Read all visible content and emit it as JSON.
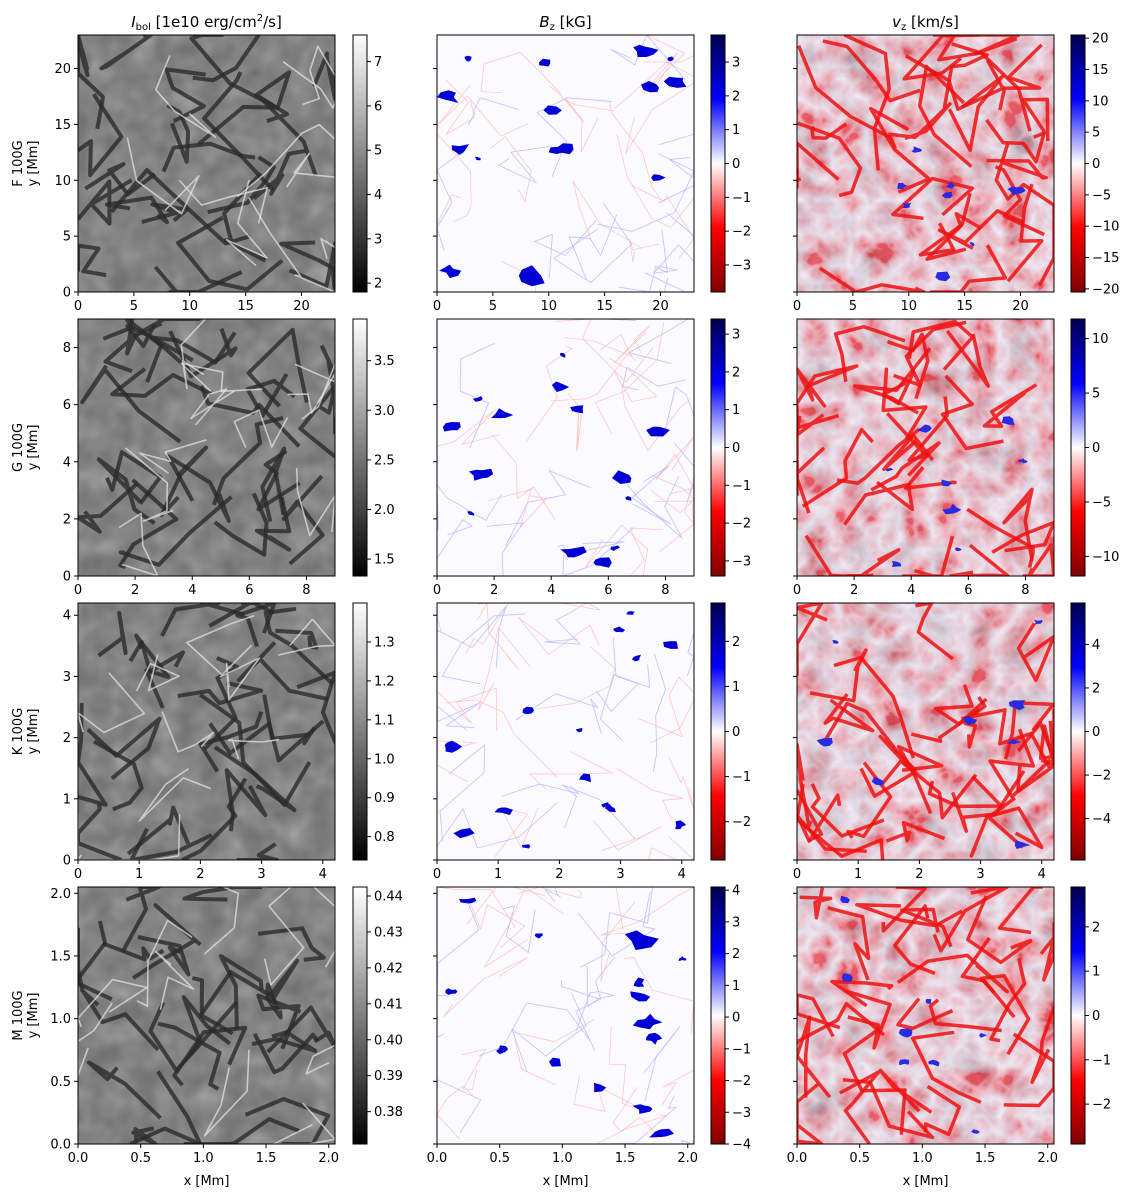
{
  "chart_data": {
    "type": "heatmap",
    "column_titles": [
      {
        "main": "I",
        "sub": "bol",
        "rest": " [1e10 erg/cm",
        "sup": "2",
        "tail": "/s]"
      },
      {
        "main": "B",
        "sub": "z",
        "rest": " [kG]",
        "sup": "",
        "tail": ""
      },
      {
        "main": "v",
        "sub": "z",
        "rest": " [km/s]",
        "sup": "",
        "tail": ""
      }
    ],
    "xlabel": "x [Mm]",
    "ylabel": "y [Mm]",
    "colormaps": [
      "gray",
      "seismic_r",
      "seismic_r"
    ],
    "colors": {
      "blue": "#0000cc",
      "red": "#e00000",
      "white": "#ffffff",
      "darkred": "#800000",
      "darkblue": "#00006a"
    },
    "rows": [
      {
        "star": "F 100G",
        "xlim": [
          0,
          23
        ],
        "ylim": [
          0,
          23
        ],
        "xticks": [
          "0",
          "5",
          "10",
          "15",
          "20"
        ],
        "xtick_values": [
          0,
          5,
          10,
          15,
          20
        ],
        "yticks": [
          "0",
          "5",
          "10",
          "15",
          "20"
        ],
        "ytick_values": [
          0,
          5,
          10,
          15,
          20
        ],
        "colorbars": [
          {
            "range": [
              1.8,
              7.6
            ],
            "ticks": [
              "2",
              "3",
              "4",
              "5",
              "6",
              "7"
            ],
            "tick_values": [
              2,
              3,
              4,
              5,
              6,
              7
            ]
          },
          {
            "range": [
              -3.8,
              3.8
            ],
            "ticks": [
              "−3",
              "−2",
              "−1",
              "0",
              "1",
              "2",
              "3"
            ],
            "tick_values": [
              -3,
              -2,
              -1,
              0,
              1,
              2,
              3
            ]
          },
          {
            "range": [
              -20.5,
              20.5
            ],
            "ticks": [
              "−20",
              "−15",
              "−10",
              "−5",
              "0",
              "5",
              "10",
              "15",
              "20"
            ],
            "tick_values": [
              -20,
              -15,
              -10,
              -5,
              0,
              5,
              10,
              15,
              20
            ]
          }
        ]
      },
      {
        "star": "G 100G",
        "xlim": [
          0,
          9
        ],
        "ylim": [
          0,
          9
        ],
        "xticks": [
          "0",
          "2",
          "4",
          "6",
          "8"
        ],
        "xtick_values": [
          0,
          2,
          4,
          6,
          8
        ],
        "yticks": [
          "0",
          "2",
          "4",
          "6",
          "8"
        ],
        "ytick_values": [
          0,
          2,
          4,
          6,
          8
        ],
        "colorbars": [
          {
            "range": [
              1.33,
              3.92
            ],
            "ticks": [
              "1.5",
              "2.0",
              "2.5",
              "3.0",
              "3.5"
            ],
            "tick_values": [
              1.5,
              2.0,
              2.5,
              3.0,
              3.5
            ]
          },
          {
            "range": [
              -3.4,
              3.4
            ],
            "ticks": [
              "−3",
              "−2",
              "−1",
              "0",
              "1",
              "2",
              "3"
            ],
            "tick_values": [
              -3,
              -2,
              -1,
              0,
              1,
              2,
              3
            ]
          },
          {
            "range": [
              -11.8,
              11.8
            ],
            "ticks": [
              "−10",
              "−5",
              "0",
              "5",
              "10"
            ],
            "tick_values": [
              -10,
              -5,
              0,
              5,
              10
            ]
          }
        ]
      },
      {
        "star": "K 100G",
        "xlim": [
          0,
          4.2
        ],
        "ylim": [
          0,
          4.2
        ],
        "xticks": [
          "0",
          "1",
          "2",
          "3",
          "4"
        ],
        "xtick_values": [
          0,
          1,
          2,
          3,
          4
        ],
        "yticks": [
          "0",
          "1",
          "2",
          "3",
          "4"
        ],
        "ytick_values": [
          0,
          1,
          2,
          3,
          4
        ],
        "colorbars": [
          {
            "range": [
              0.74,
              1.4
            ],
            "ticks": [
              "0.8",
              "0.9",
              "1.0",
              "1.1",
              "1.2",
              "1.3"
            ],
            "tick_values": [
              0.8,
              0.9,
              1.0,
              1.1,
              1.2,
              1.3
            ]
          },
          {
            "range": [
              -2.85,
              2.85
            ],
            "ticks": [
              "−2",
              "−1",
              "0",
              "1",
              "2"
            ],
            "tick_values": [
              -2,
              -1,
              0,
              1,
              2
            ]
          },
          {
            "range": [
              -5.9,
              5.9
            ],
            "ticks": [
              "−4",
              "−2",
              "0",
              "2",
              "4"
            ],
            "tick_values": [
              -4,
              -2,
              0,
              2,
              4
            ]
          }
        ]
      },
      {
        "star": "M 100G",
        "xlim": [
          0,
          2.05
        ],
        "ylim": [
          0,
          2.05
        ],
        "xticks": [
          "0.0",
          "0.5",
          "1.0",
          "1.5",
          "2.0"
        ],
        "xtick_values": [
          0,
          0.5,
          1.0,
          1.5,
          2.0
        ],
        "yticks": [
          "0.0",
          "0.5",
          "1.0",
          "1.5",
          "2.0"
        ],
        "ytick_values": [
          0,
          0.5,
          1.0,
          1.5,
          2.0
        ],
        "colorbars": [
          {
            "range": [
              0.371,
              0.4425
            ],
            "ticks": [
              "0.38",
              "0.39",
              "0.40",
              "0.41",
              "0.42",
              "0.43",
              "0.44"
            ],
            "tick_values": [
              0.38,
              0.39,
              0.4,
              0.41,
              0.42,
              0.43,
              0.44
            ]
          },
          {
            "range": [
              -4.0,
              4.1
            ],
            "ticks": [
              "−4",
              "−3",
              "−2",
              "−1",
              "0",
              "1",
              "2",
              "3",
              "4"
            ],
            "tick_values": [
              -4,
              -3,
              -2,
              -1,
              0,
              1,
              2,
              3,
              4
            ]
          },
          {
            "range": [
              -2.9,
              2.9
            ],
            "ticks": [
              "−2",
              "−1",
              "0",
              "1",
              "2"
            ],
            "tick_values": [
              -2,
              -1,
              0,
              1,
              2
            ]
          }
        ]
      }
    ]
  }
}
